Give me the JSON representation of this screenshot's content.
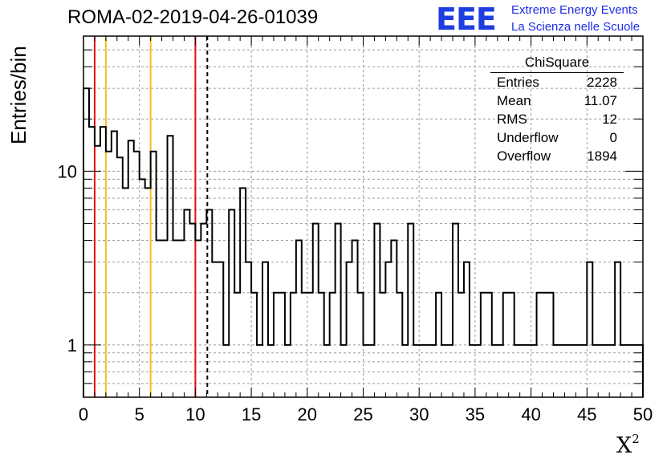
{
  "header": {
    "title": "ROMA-02-2019-04-26-01039",
    "logo_text": "EEE",
    "org_line1": "Extreme Energy Events",
    "org_line2": "La Scienza nelle Scuole"
  },
  "stats_box": {
    "title": "ChiSquare",
    "rows": [
      {
        "label": "Entries",
        "value": "2228"
      },
      {
        "label": "Mean",
        "value": "11.07"
      },
      {
        "label": "RMS",
        "value": "12"
      },
      {
        "label": "Underflow",
        "value": "0"
      },
      {
        "label": "Overflow",
        "value": "1894"
      }
    ]
  },
  "chart_data": {
    "type": "histogram",
    "title": "ROMA-02-2019-04-26-01039",
    "xlabel": "X",
    "xlabel_superscript": "2",
    "ylabel": "Entries/bin",
    "xlim": [
      0,
      50
    ],
    "ylim": [
      0.5,
      60
    ],
    "y_scale": "log",
    "grid": true,
    "bin_width": 0.5,
    "bin_edges_start": 0,
    "values": [
      30,
      18,
      14,
      18,
      13,
      17,
      12,
      8,
      15,
      13,
      9,
      8,
      13,
      4,
      4,
      16,
      4,
      4,
      6,
      5,
      4,
      5,
      6,
      3,
      3,
      1,
      6,
      2,
      8,
      3,
      2,
      1,
      3,
      1,
      2,
      2,
      1,
      2,
      4,
      2,
      2,
      5,
      2,
      1,
      2,
      5,
      1,
      3,
      4,
      2,
      1,
      1,
      5,
      2,
      3,
      4,
      2,
      1,
      5,
      1,
      1,
      1,
      1,
      2,
      1,
      1,
      5,
      2,
      3,
      1,
      1,
      2,
      2,
      1,
      1,
      2,
      2,
      1,
      1,
      1,
      1,
      2,
      2,
      2,
      1,
      1,
      1,
      1,
      1,
      1,
      3,
      1,
      1,
      1,
      1,
      3,
      1,
      1,
      1,
      1
    ],
    "x_ticks": [
      0,
      5,
      10,
      15,
      20,
      25,
      30,
      35,
      40,
      45,
      50
    ],
    "y_ticks": [
      1,
      10
    ],
    "vertical_lines": [
      {
        "x": 1,
        "color": "#e01010",
        "style": "solid"
      },
      {
        "x": 2,
        "color": "#f0c020",
        "style": "solid"
      },
      {
        "x": 6,
        "color": "#f0c020",
        "style": "solid"
      },
      {
        "x": 10,
        "color": "#e01010",
        "style": "solid"
      },
      {
        "x": 11.07,
        "color": "#000000",
        "style": "dashed"
      }
    ]
  }
}
